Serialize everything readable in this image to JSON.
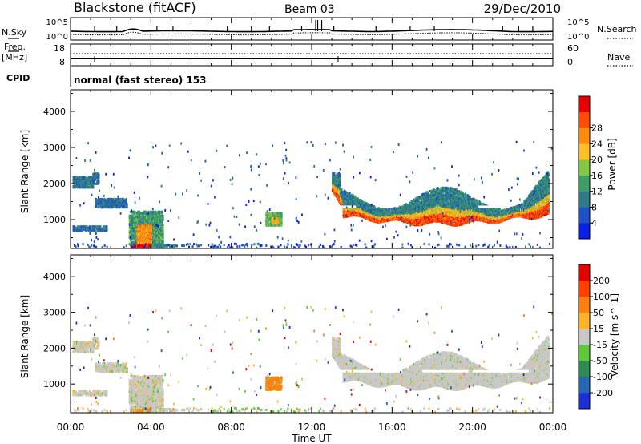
{
  "header": {
    "title": "Blackstone (fitACF)",
    "beam": "Beam 03",
    "date": "29/Dec/2010"
  },
  "status_panels": {
    "nsky_label": "N.Sky",
    "nsearch_label": "N.Search",
    "nsky_ticks": [
      "10^5",
      "10^0"
    ],
    "nsearch_ticks": [
      "10^5",
      "10^0"
    ],
    "freq_label": "Freq.",
    "freq_unit": "[MHz]",
    "freq_ticks": [
      "18",
      "8"
    ],
    "nave_label": "Nave",
    "nave_ticks": [
      "60",
      "0"
    ],
    "cpid_label": "CPID",
    "cpid_text": "normal (fast stereo) 153"
  },
  "chart_data": [
    {
      "type": "heatmap",
      "title": "",
      "ylabel": "Slant Range [km]",
      "xlabel": "",
      "y_ticks": [
        1000,
        2000,
        3000,
        4000
      ],
      "ylim": [
        200,
        4600
      ],
      "xlim_hours": [
        0,
        24
      ],
      "colorbar": {
        "label": "Power [dB]",
        "ticks": [
          "4",
          "8",
          "12",
          "16",
          "20",
          "24",
          "28"
        ],
        "colors": [
          "#0a1ee6",
          "#1e50c8",
          "#2f7a86",
          "#3c9e64",
          "#82c843",
          "#ffc025",
          "#ff8a10",
          "#ff4a08",
          "#e60000"
        ]
      }
    },
    {
      "type": "heatmap",
      "title": "",
      "ylabel": "Slant Range [km]",
      "xlabel": "Time UT",
      "y_ticks": [
        1000,
        2000,
        3000,
        4000
      ],
      "ylim": [
        200,
        4600
      ],
      "x_ticks": [
        "00:00",
        "04:00",
        "08:00",
        "12:00",
        "16:00",
        "20:00",
        "00:00"
      ],
      "colorbar": {
        "label": "Velocity [m s^-1]",
        "ticks": [
          "200",
          "100",
          "50",
          "15",
          "-15",
          "-50",
          "-100",
          "-200"
        ],
        "colors": [
          "#1a2fd8",
          "#2466b0",
          "#2e8a50",
          "#5ec83a",
          "#c8c8c8",
          "#ffb428",
          "#ff8010",
          "#ff4000",
          "#e60000"
        ]
      }
    }
  ],
  "x_axis": {
    "label": "Time UT",
    "ticks": [
      "00:00",
      "04:00",
      "08:00",
      "12:00",
      "16:00",
      "20:00",
      "00:00"
    ]
  }
}
